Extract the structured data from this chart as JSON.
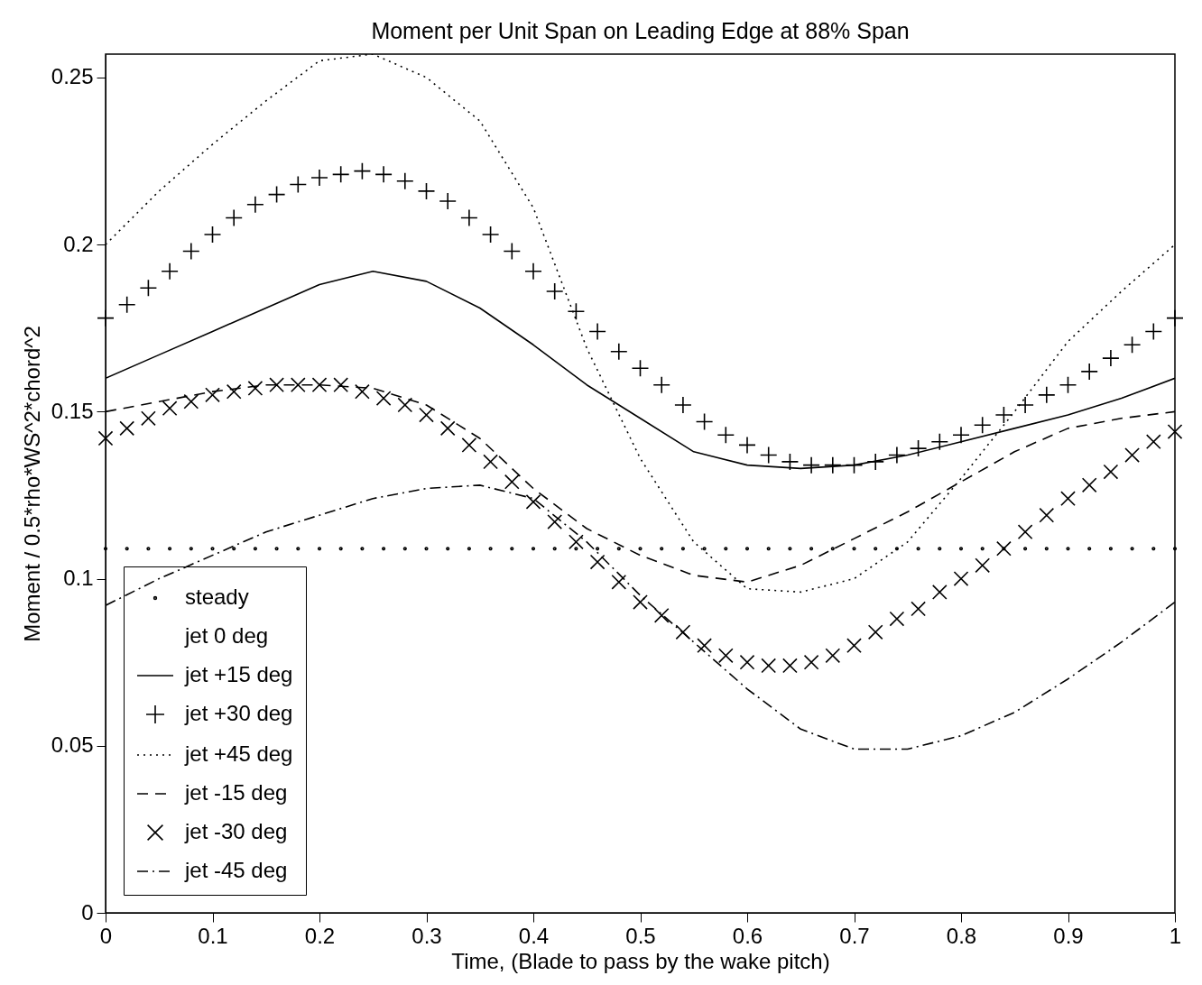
{
  "chart_data": {
    "type": "line",
    "title": "Moment per Unit Span on Leading Edge at 88% Span",
    "xlabel": "Time, (Blade to pass by the wake pitch)",
    "ylabel": "Moment / 0.5*rho*WS^2*chord^2",
    "xlim": [
      0,
      1
    ],
    "ylim": [
      0,
      0.257
    ],
    "xticks": [
      0,
      0.1,
      0.2,
      0.3,
      0.4,
      0.5,
      0.6,
      0.7,
      0.8,
      0.9,
      1
    ],
    "yticks": [
      0,
      0.05,
      0.1,
      0.15,
      0.2,
      0.25
    ],
    "grid": false,
    "legend": "bottom left",
    "series": [
      {
        "name": "steady",
        "type": "scatter",
        "marker": "circle",
        "color": "#000000",
        "x": [
          0,
          0.02,
          0.04,
          0.06,
          0.08,
          0.1,
          0.12,
          0.14,
          0.16,
          0.18,
          0.2,
          0.22,
          0.24,
          0.26,
          0.28,
          0.3,
          0.32,
          0.34,
          0.36,
          0.38,
          0.4,
          0.42,
          0.44,
          0.46,
          0.48,
          0.5,
          0.52,
          0.54,
          0.56,
          0.58,
          0.6,
          0.62,
          0.64,
          0.66,
          0.68,
          0.7,
          0.72,
          0.74,
          0.76,
          0.78,
          0.8,
          0.82,
          0.84,
          0.86,
          0.88,
          0.9,
          0.92,
          0.94,
          0.96,
          0.98,
          1
        ],
        "values": [
          0.109,
          0.109,
          0.109,
          0.109,
          0.109,
          0.109,
          0.109,
          0.109,
          0.109,
          0.109,
          0.109,
          0.109,
          0.109,
          0.109,
          0.109,
          0.109,
          0.109,
          0.109,
          0.109,
          0.109,
          0.109,
          0.109,
          0.109,
          0.109,
          0.109,
          0.109,
          0.109,
          0.109,
          0.109,
          0.109,
          0.109,
          0.109,
          0.109,
          0.109,
          0.109,
          0.109,
          0.109,
          0.109,
          0.109,
          0.109,
          0.109,
          0.109,
          0.109,
          0.109,
          0.109,
          0.109,
          0.109,
          0.109,
          0.109,
          0.109,
          0.109
        ]
      },
      {
        "name": "jet   0 deg",
        "marker": "none",
        "color": null
      },
      {
        "name": "jet +15 deg",
        "line_style": "solid",
        "color": "#000000",
        "x": [
          0,
          0.05,
          0.1,
          0.15,
          0.2,
          0.25,
          0.3,
          0.35,
          0.4,
          0.45,
          0.5,
          0.55,
          0.6,
          0.65,
          0.7,
          0.75,
          0.8,
          0.85,
          0.9,
          0.95,
          1
        ],
        "values": [
          0.16,
          0.167,
          0.174,
          0.181,
          0.188,
          0.192,
          0.189,
          0.181,
          0.17,
          0.158,
          0.148,
          0.138,
          0.134,
          0.133,
          0.134,
          0.137,
          0.141,
          0.145,
          0.149,
          0.154,
          0.16
        ]
      },
      {
        "name": "jet +30 deg",
        "type": "scatter",
        "marker": "cross",
        "color": "#000000",
        "x": [
          0,
          0.02,
          0.04,
          0.06,
          0.08,
          0.1,
          0.12,
          0.14,
          0.16,
          0.18,
          0.2,
          0.22,
          0.24,
          0.26,
          0.28,
          0.3,
          0.32,
          0.34,
          0.36,
          0.38,
          0.4,
          0.42,
          0.44,
          0.46,
          0.48,
          0.5,
          0.52,
          0.54,
          0.56,
          0.58,
          0.6,
          0.62,
          0.64,
          0.66,
          0.68,
          0.7,
          0.72,
          0.74,
          0.76,
          0.78,
          0.8,
          0.82,
          0.84,
          0.86,
          0.88,
          0.9,
          0.92,
          0.94,
          0.96,
          0.98,
          1
        ],
        "values": [
          0.178,
          0.182,
          0.187,
          0.192,
          0.198,
          0.203,
          0.208,
          0.212,
          0.215,
          0.218,
          0.22,
          0.221,
          0.222,
          0.221,
          0.219,
          0.216,
          0.213,
          0.208,
          0.203,
          0.198,
          0.192,
          0.186,
          0.18,
          0.174,
          0.168,
          0.163,
          0.158,
          0.152,
          0.147,
          0.143,
          0.14,
          0.137,
          0.135,
          0.134,
          0.134,
          0.134,
          0.135,
          0.137,
          0.139,
          0.141,
          0.143,
          0.146,
          0.149,
          0.152,
          0.155,
          0.158,
          0.162,
          0.166,
          0.17,
          0.174,
          0.178
        ]
      },
      {
        "name": "jet +45 deg",
        "line_style": "dotted",
        "color": "#000000",
        "x": [
          0,
          0.05,
          0.1,
          0.15,
          0.2,
          0.25,
          0.3,
          0.35,
          0.4,
          0.45,
          0.5,
          0.55,
          0.6,
          0.65,
          0.7,
          0.75,
          0.8,
          0.85,
          0.9,
          0.95,
          1
        ],
        "values": [
          0.2,
          0.216,
          0.23,
          0.243,
          0.255,
          0.257,
          0.25,
          0.237,
          0.211,
          0.169,
          0.136,
          0.111,
          0.097,
          0.096,
          0.1,
          0.111,
          0.13,
          0.15,
          0.171,
          0.186,
          0.2
        ]
      },
      {
        "name": "jet -15 deg",
        "line_style": "dashed",
        "color": "#000000",
        "x": [
          0,
          0.05,
          0.1,
          0.15,
          0.2,
          0.25,
          0.3,
          0.35,
          0.4,
          0.45,
          0.5,
          0.55,
          0.6,
          0.65,
          0.7,
          0.75,
          0.8,
          0.85,
          0.9,
          0.95,
          1
        ],
        "values": [
          0.15,
          0.153,
          0.156,
          0.158,
          0.158,
          0.157,
          0.152,
          0.142,
          0.127,
          0.115,
          0.107,
          0.101,
          0.099,
          0.104,
          0.112,
          0.12,
          0.129,
          0.138,
          0.145,
          0.148,
          0.15
        ]
      },
      {
        "name": "jet -30 deg",
        "type": "scatter",
        "marker": "x",
        "color": "#000000",
        "x": [
          0,
          0.02,
          0.04,
          0.06,
          0.08,
          0.1,
          0.12,
          0.14,
          0.16,
          0.18,
          0.2,
          0.22,
          0.24,
          0.26,
          0.28,
          0.3,
          0.32,
          0.34,
          0.36,
          0.38,
          0.4,
          0.42,
          0.44,
          0.46,
          0.48,
          0.5,
          0.52,
          0.54,
          0.56,
          0.58,
          0.6,
          0.62,
          0.64,
          0.66,
          0.68,
          0.7,
          0.72,
          0.74,
          0.76,
          0.78,
          0.8,
          0.82,
          0.84,
          0.86,
          0.88,
          0.9,
          0.92,
          0.94,
          0.96,
          0.98,
          1
        ],
        "values": [
          0.142,
          0.145,
          0.148,
          0.151,
          0.153,
          0.155,
          0.156,
          0.157,
          0.158,
          0.158,
          0.158,
          0.158,
          0.156,
          0.154,
          0.152,
          0.149,
          0.145,
          0.14,
          0.135,
          0.129,
          0.123,
          0.117,
          0.111,
          0.105,
          0.099,
          0.093,
          0.089,
          0.084,
          0.08,
          0.077,
          0.075,
          0.074,
          0.074,
          0.075,
          0.077,
          0.08,
          0.084,
          0.088,
          0.091,
          0.096,
          0.1,
          0.104,
          0.109,
          0.114,
          0.119,
          0.124,
          0.128,
          0.132,
          0.137,
          0.141,
          0.144
        ]
      },
      {
        "name": "jet -45 deg",
        "line_style": "dashdot",
        "color": "#000000",
        "x": [
          0,
          0.05,
          0.1,
          0.15,
          0.2,
          0.25,
          0.3,
          0.35,
          0.4,
          0.45,
          0.5,
          0.55,
          0.6,
          0.65,
          0.7,
          0.75,
          0.8,
          0.85,
          0.9,
          0.95,
          1
        ],
        "values": [
          0.092,
          0.1,
          0.107,
          0.114,
          0.119,
          0.124,
          0.127,
          0.128,
          0.124,
          0.111,
          0.095,
          0.081,
          0.067,
          0.055,
          0.049,
          0.049,
          0.053,
          0.06,
          0.07,
          0.081,
          0.093
        ]
      }
    ]
  }
}
